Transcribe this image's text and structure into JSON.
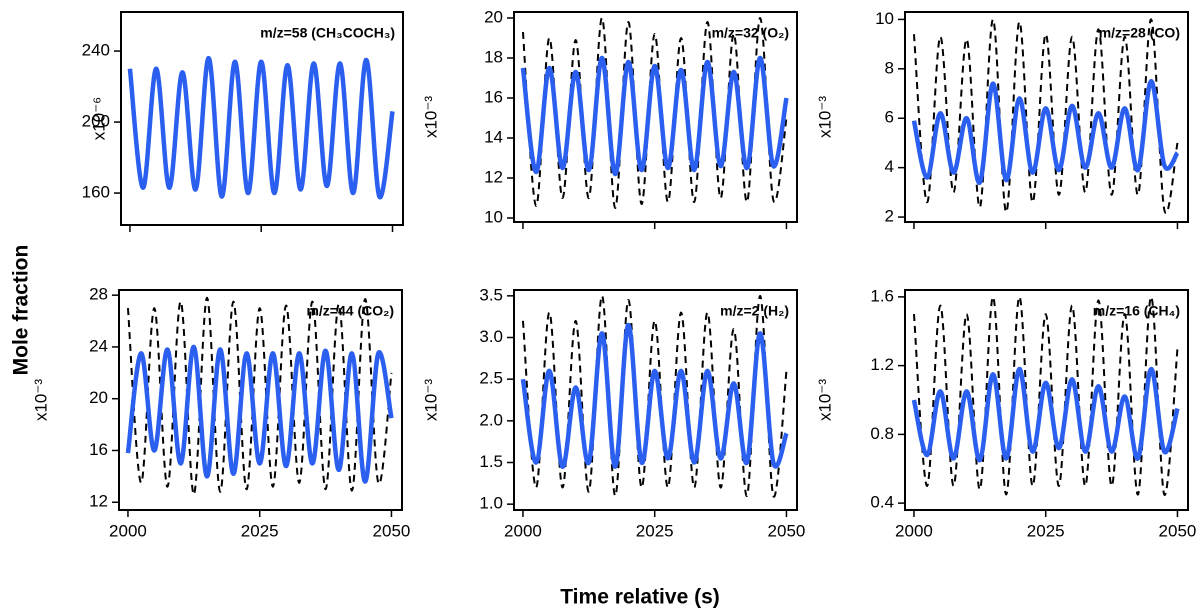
{
  "ylabel": "Mole fraction",
  "xlabel": "Time relative (s)",
  "chart_data": [
    {
      "type": "line",
      "annotation": "m/z=58 (CH₃COCH₃)",
      "scale_label": "x10⁻⁶",
      "xtick_labels": false,
      "x": [
        2000,
        2002.5,
        2005,
        2007.5,
        2010,
        2012.5,
        2015,
        2017.5,
        2020,
        2022.5,
        2025,
        2027.5,
        2030,
        2032.5,
        2035,
        2037.5,
        2040,
        2042.5,
        2045,
        2047.5,
        2050
      ],
      "xlim": [
        1998.3,
        2052
      ],
      "xticks": [
        2000,
        2025,
        2050
      ],
      "ylim": [
        142,
        262
      ],
      "yticks": [
        160,
        200,
        240
      ],
      "series": [
        {
          "color": "#2b5ff0",
          "dash": false,
          "values": [
            230,
            163,
            230,
            163,
            228,
            162,
            236,
            158,
            234,
            160,
            234,
            160,
            232,
            162,
            233,
            164,
            233,
            160,
            235,
            158,
            206
          ]
        }
      ]
    },
    {
      "type": "line",
      "annotation": "m/z=32 (O₂)",
      "scale_label": "x10⁻³",
      "xtick_labels": false,
      "x": [
        2000,
        2002.5,
        2005,
        2007.5,
        2010,
        2012.5,
        2015,
        2017.5,
        2020,
        2022.5,
        2025,
        2027.5,
        2030,
        2032.5,
        2035,
        2037.5,
        2040,
        2042.5,
        2045,
        2047.5,
        2050
      ],
      "xlim": [
        1998.3,
        2052
      ],
      "xticks": [
        2000,
        2025,
        2050
      ],
      "ylim": [
        9.8,
        20.3
      ],
      "yticks": [
        10,
        12,
        14,
        16,
        18,
        20
      ],
      "series": [
        {
          "color": "#000000",
          "dash": true,
          "values": [
            19.3,
            10.6,
            19,
            11,
            18.9,
            11,
            20,
            10.5,
            19.8,
            10.7,
            19.2,
            10.8,
            19,
            10.8,
            19.8,
            11,
            19.2,
            10.8,
            20,
            10.9,
            15
          ]
        },
        {
          "color": "#2b5ff0",
          "dash": false,
          "values": [
            17.5,
            12.3,
            17.5,
            12.5,
            17.3,
            12.4,
            18,
            12.2,
            17.8,
            12.4,
            17.6,
            12.5,
            17.4,
            12.4,
            17.8,
            12.6,
            17.3,
            12.5,
            18,
            12.6,
            16
          ]
        }
      ]
    },
    {
      "type": "line",
      "annotation": "m/z=28 (CO)",
      "scale_label": "x10⁻³",
      "xtick_labels": false,
      "x": [
        2000,
        2002.5,
        2005,
        2007.5,
        2010,
        2012.5,
        2015,
        2017.5,
        2020,
        2022.5,
        2025,
        2027.5,
        2030,
        2032.5,
        2035,
        2037.5,
        2040,
        2042.5,
        2045,
        2047.5,
        2050
      ],
      "xlim": [
        1998.3,
        2052
      ],
      "xticks": [
        2000,
        2025,
        2050
      ],
      "ylim": [
        1.8,
        10.3
      ],
      "yticks": [
        2,
        4,
        6,
        8,
        10
      ],
      "series": [
        {
          "color": "#000000",
          "dash": true,
          "values": [
            9.4,
            2.6,
            9.3,
            3,
            9.2,
            2.4,
            10,
            2.2,
            9.9,
            2.6,
            9.4,
            2.9,
            9.3,
            3,
            9.6,
            2.9,
            9.3,
            2.9,
            10,
            2.3,
            5
          ]
        },
        {
          "color": "#2b5ff0",
          "dash": false,
          "values": [
            5.9,
            3.6,
            6.2,
            3.8,
            6,
            3.4,
            7.4,
            3.5,
            6.8,
            3.8,
            6.4,
            3.9,
            6.5,
            4,
            6.2,
            4,
            6.4,
            3.9,
            7.5,
            4.1,
            4.6
          ]
        }
      ]
    },
    {
      "type": "line",
      "annotation": "m/z=44 (CO₂)",
      "scale_label": "x10⁻³",
      "xtick_labels": true,
      "x": [
        2000,
        2002.5,
        2005,
        2007.5,
        2010,
        2012.5,
        2015,
        2017.5,
        2020,
        2022.5,
        2025,
        2027.5,
        2030,
        2032.5,
        2035,
        2037.5,
        2040,
        2042.5,
        2045,
        2047.5,
        2050
      ],
      "xlim": [
        1998.3,
        2052
      ],
      "xticks": [
        2000,
        2025,
        2050
      ],
      "ylim": [
        11.4,
        28.4
      ],
      "yticks": [
        12,
        16,
        20,
        24,
        28
      ],
      "series": [
        {
          "color": "#000000",
          "dash": true,
          "values": [
            27,
            13.5,
            27,
            13.2,
            27.5,
            12.6,
            27.8,
            12.8,
            27.5,
            13,
            27,
            13.2,
            27.2,
            13.5,
            27.5,
            13,
            27.3,
            12.9,
            27.7,
            13.5,
            22
          ]
        },
        {
          "color": "#2b5ff0",
          "dash": false,
          "values": [
            15.8,
            23.5,
            16,
            23.8,
            15,
            24,
            14,
            23.8,
            14.2,
            23.5,
            15,
            23.5,
            14.8,
            23.5,
            15,
            23.7,
            14.5,
            23.5,
            13.6,
            23.5,
            18.5
          ]
        }
      ]
    },
    {
      "type": "line",
      "annotation": "m/z=2 (H₂)",
      "scale_label": "x10⁻³",
      "xtick_labels": true,
      "x": [
        2000,
        2002.5,
        2005,
        2007.5,
        2010,
        2012.5,
        2015,
        2017.5,
        2020,
        2022.5,
        2025,
        2027.5,
        2030,
        2032.5,
        2035,
        2037.5,
        2040,
        2042.5,
        2045,
        2047.5,
        2050
      ],
      "xlim": [
        1998.3,
        2052
      ],
      "xticks": [
        2000,
        2025,
        2050
      ],
      "ylim": [
        0.93,
        3.57
      ],
      "yticks": [
        {
          "value": 1,
          "label": "1.0"
        },
        1.5,
        {
          "value": 2,
          "label": "2.0"
        },
        2.5,
        {
          "value": 3,
          "label": "3.0"
        },
        3.5
      ],
      "series": [
        {
          "color": "#000000",
          "dash": true,
          "values": [
            3.2,
            1.2,
            3.3,
            1.2,
            3.2,
            1.15,
            3.5,
            1.1,
            3.45,
            1.2,
            3.2,
            1.2,
            3.3,
            1.2,
            3.3,
            1.2,
            3.1,
            1.1,
            3.5,
            1.1,
            2.6
          ]
        },
        {
          "color": "#2b5ff0",
          "dash": false,
          "values": [
            2.5,
            1.5,
            2.6,
            1.45,
            2.4,
            1.5,
            3.05,
            1.45,
            3.15,
            1.5,
            2.6,
            1.55,
            2.6,
            1.5,
            2.6,
            1.55,
            2.45,
            1.5,
            3.05,
            1.5,
            1.85
          ]
        }
      ]
    },
    {
      "type": "line",
      "annotation": "m/z=16 (CH₄)",
      "scale_label": "x10⁻³",
      "xtick_labels": true,
      "x": [
        2000,
        2002.5,
        2005,
        2007.5,
        2010,
        2012.5,
        2015,
        2017.5,
        2020,
        2022.5,
        2025,
        2027.5,
        2030,
        2032.5,
        2035,
        2037.5,
        2040,
        2042.5,
        2045,
        2047.5,
        2050
      ],
      "xlim": [
        1998.3,
        2052
      ],
      "xticks": [
        2000,
        2025,
        2050
      ],
      "ylim": [
        0.36,
        1.64
      ],
      "yticks": [
        0.4,
        0.8,
        1.2,
        1.6
      ],
      "series": [
        {
          "color": "#000000",
          "dash": true,
          "values": [
            1.5,
            0.5,
            1.55,
            0.5,
            1.5,
            0.48,
            1.6,
            0.45,
            1.6,
            0.5,
            1.5,
            0.5,
            1.55,
            0.5,
            1.58,
            0.5,
            1.5,
            0.45,
            1.6,
            0.45,
            1.3
          ]
        },
        {
          "color": "#2b5ff0",
          "dash": false,
          "values": [
            1,
            0.68,
            1.05,
            0.66,
            1.05,
            0.65,
            1.15,
            0.66,
            1.18,
            0.7,
            1.1,
            0.72,
            1.12,
            0.7,
            1.08,
            0.7,
            1.02,
            0.66,
            1.18,
            0.7,
            0.95
          ]
        }
      ]
    }
  ]
}
